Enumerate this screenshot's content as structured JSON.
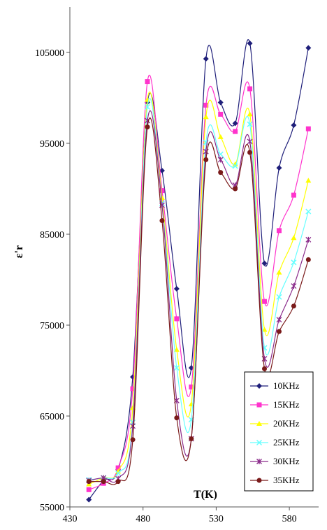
{
  "chart_data": {
    "type": "line",
    "xlabel": "T(K)",
    "ylabel": "ε'r",
    "xlim": [
      430,
      600
    ],
    "ylim": [
      55000,
      110000
    ],
    "xticks": [
      430,
      480,
      530,
      580
    ],
    "yticks": [
      55000,
      65000,
      75000,
      85000,
      95000,
      105000
    ],
    "xtick_labels": [
      "430",
      "480",
      "530",
      "580"
    ],
    "ytick_labels": [
      "55000",
      "65000",
      "75000",
      "85000",
      "95000",
      "105000"
    ],
    "grid": false,
    "legend_position": "bottom-right",
    "x": [
      443,
      453,
      463,
      473,
      483,
      493,
      503,
      513,
      523,
      533,
      543,
      553,
      563,
      573,
      583,
      593
    ],
    "series": [
      {
        "name": "10KHz",
        "color": "#1f1f7a",
        "marker": "diamond",
        "values": [
          55800,
          57900,
          59100,
          69300,
          99500,
          92000,
          79000,
          70300,
          104300,
          99500,
          97200,
          106000,
          81800,
          92300,
          97000,
          105500
        ]
      },
      {
        "name": "15KHz",
        "color": "#ff33cc",
        "marker": "square",
        "values": [
          56900,
          57600,
          59300,
          68000,
          101800,
          89800,
          75700,
          68200,
          99200,
          98200,
          96300,
          101000,
          77600,
          85400,
          89300,
          96600
        ]
      },
      {
        "name": "20KHz",
        "color": "#ffff00",
        "marker": "triangle",
        "values": [
          57500,
          58200,
          58900,
          65900,
          99800,
          89000,
          72300,
          66300,
          97900,
          95700,
          92700,
          98200,
          74500,
          80800,
          84600,
          90900
        ]
      },
      {
        "name": "25KHz",
        "color": "#66ffff",
        "marker": "x",
        "values": [
          58000,
          58200,
          58700,
          64300,
          99000,
          88400,
          70300,
          64600,
          95100,
          93800,
          92500,
          97100,
          72500,
          78100,
          81900,
          87500
        ]
      },
      {
        "name": "30KHz",
        "color": "#8a2a8a",
        "marker": "star",
        "values": [
          57900,
          58200,
          58100,
          63900,
          97500,
          88200,
          66700,
          62500,
          94100,
          93200,
          90400,
          95200,
          71300,
          75600,
          79300,
          84400
        ]
      },
      {
        "name": "35KHz",
        "color": "#7a1a1a",
        "marker": "circle",
        "values": [
          57800,
          57800,
          57800,
          62400,
          96800,
          86500,
          64800,
          62500,
          93200,
          91800,
          90000,
          94000,
          70200,
          74300,
          77100,
          82200
        ]
      }
    ]
  }
}
